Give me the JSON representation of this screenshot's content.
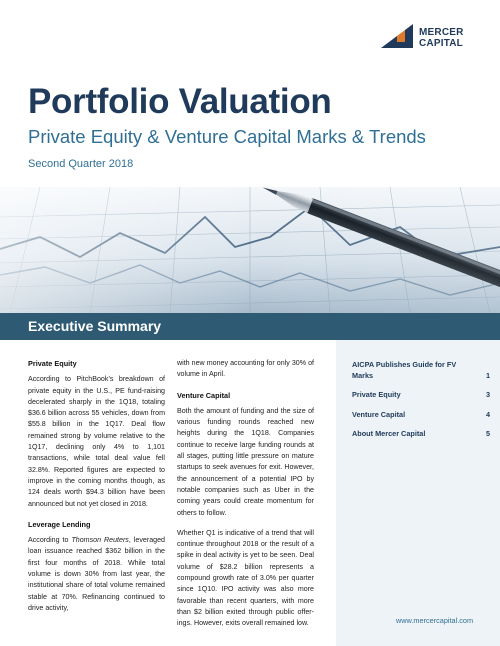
{
  "logo": {
    "line1": "MERCER",
    "line2": "CAPITAL"
  },
  "header": {
    "title": "Portfolio Valuation",
    "subtitle": "Private Equity & Venture Capital Marks & Trends",
    "quarter": "Second Quarter 2018"
  },
  "band": {
    "title": "Executive Summary"
  },
  "column1": {
    "private_equity": {
      "heading": "Private Equity",
      "text": "According to PitchBook’s breakdown of private equity in the U.S., PE fund-raising decelerated sharply in the 1Q18, totaling $36.6 billion across 55 vehicles, down from $55.8 billion in the 1Q17. Deal flow remained strong by volume relative to the 1Q17, declining only 4% to 1,101 transactions, while total deal value fell 32.8%. Reported figures are expected to improve in the coming months though, as 124 deals worth $94.3 billion have been announced but not yet closed in 2018."
    },
    "leverage_lending": {
      "heading": "Leverage Lending",
      "text_before": "According to ",
      "text_source": "Thomson Reuters",
      "text_after": ", leveraged loan issuance reached $362 billion in the first four months of 2018. While total volume is down 30% from last year, the institutional share of total volume remained stable at 70%. Refinancing continued to drive activity,"
    }
  },
  "column2": {
    "continuation": "with new money accounting for only 30% of volume in April.",
    "venture_capital": {
      "heading": "Venture Capital",
      "text": "Both the amount of funding and the size of various funding rounds reached new heights during the 1Q18. Companies continue to receive large funding rounds at all stages, putting little pressure on mature startups to seek avenues for exit. However, the announcement of a potential IPO by notable companies such as Uber in the coming years could create momentum for others to follow."
    },
    "paragraph2": "Whether Q1 is indicative of a trend that will continue throughout 2018 or the result of a spike in deal activity is yet to be seen. Deal volume of $28.2 billion represents a compound growth rate of 3.0% per quarter since 1Q10. IPO activity was also more favorable than recent quarters, with more than $2 billion exited through public offer-ings. However, exits overall remained low."
  },
  "sidebar": {
    "items": [
      {
        "label": "AICPA Publishes Guide for FV Marks",
        "page": "1"
      },
      {
        "label": "Private Equity",
        "page": "3"
      },
      {
        "label": "Venture Capital",
        "page": "4"
      },
      {
        "label": "About Mercer Capital",
        "page": "5"
      }
    ],
    "website": "www.mercercapital.com"
  },
  "colors": {
    "navy": "#1f3a5a",
    "accent_blue": "#2f6f95",
    "band": "#2e5a74",
    "sidebar_bg": "#eef3f7",
    "logo_orange": "#e07a2a"
  },
  "icons": [
    "mercer-capital-logo-mark",
    "pen-and-chart-photo"
  ]
}
